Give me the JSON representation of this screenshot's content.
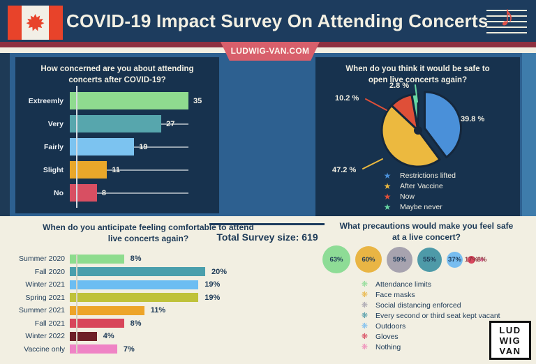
{
  "header": {
    "title": "COVID-19 Impact  Survey On Attending Concerts"
  },
  "banner": {
    "site": "LUDWIG-VAN.COM"
  },
  "summary": {
    "total_label": "Total Survey size: 619"
  },
  "logo": {
    "line1": "LUD",
    "line2": "WIG",
    "line3": "VAN"
  },
  "colors": {
    "header_navy": "#1d3c5e",
    "panel_navy": "#17324e",
    "section_blue": "#2d6090",
    "maroon_stripe": "#8e3040",
    "cream": "#f2efe2",
    "ribbon_red": "#d85f6b",
    "pie_outline": "#15273c",
    "navy_text": "#1d3a57"
  },
  "chart_data": [
    {
      "type": "bar",
      "orientation": "horizontal",
      "title": "How concerned are you about attending concerts after COVID-19?",
      "categories": [
        "Extreemly",
        "Very",
        "Fairly",
        "Slight",
        "No"
      ],
      "values": [
        35,
        27,
        19,
        11,
        8
      ],
      "value_labels": [
        "35",
        "27",
        "19",
        "11",
        "8"
      ],
      "colors": [
        "#8fdb8f",
        "#57a6ad",
        "#7cc3f0",
        "#e9a72a",
        "#d84f62"
      ],
      "xlim": [
        0,
        35
      ],
      "grid": "value leader lines to max",
      "legend_position": "none"
    },
    {
      "type": "pie",
      "title": "When do you think it would be safe to open live concerts again?",
      "slices": [
        {
          "label": "Restrictions lifted",
          "value": 39.8,
          "display": "39.8 %",
          "color": "#4a90d9"
        },
        {
          "label": "After Vaccine",
          "value": 47.2,
          "display": "47.2 %",
          "color": "#ecb93f"
        },
        {
          "label": "Now",
          "value": 10.2,
          "display": "10.2 %",
          "color": "#df4f38"
        },
        {
          "label": "Maybe never",
          "value": 2.8,
          "display": "2.8 %",
          "color": "#68d9a4"
        }
      ],
      "exploded_index": 0,
      "legend_position": "bottom",
      "legend_marker": "star"
    },
    {
      "type": "bar",
      "orientation": "horizontal",
      "title": "When do you anticipate feeling comfortable to attend live concerts again?",
      "categories": [
        "Summer 2020",
        "Fall 2020",
        "Winter 2021",
        "Spring 2021",
        "Summer 2021",
        "Fall 2021",
        "Winter 2022",
        "Vaccine only"
      ],
      "values": [
        8,
        20,
        19,
        19,
        11,
        8,
        4,
        7
      ],
      "value_labels": [
        "8%",
        "20%",
        "19%",
        "19%",
        "11%",
        "8%",
        "4%",
        "7%"
      ],
      "colors": [
        "#8edc8e",
        "#4a9fac",
        "#6cbdf2",
        "#bfc23a",
        "#eda429",
        "#d8465a",
        "#6e2027",
        "#ef83c5"
      ],
      "xlim": [
        0,
        20
      ],
      "legend_position": "none"
    },
    {
      "type": "bubble",
      "title": "What precautions would make you feel safe at a live concert?",
      "items": [
        {
          "label": "Attendance limits",
          "value": 63,
          "display": "63%",
          "color": "#8edc96"
        },
        {
          "label": "Face masks",
          "value": 60,
          "display": "60%",
          "color": "#e9b544"
        },
        {
          "label": "Social distancing enforced",
          "value": 59,
          "display": "59%",
          "color": "#a7a3af"
        },
        {
          "label": "Every second or third seat kept vacant",
          "value": 55,
          "display": "55%",
          "color": "#4e9aa8"
        },
        {
          "label": "Outdoors",
          "value": 37,
          "display": "37%",
          "color": "#78bdf0"
        },
        {
          "label": "Gloves",
          "value": 17,
          "display": "17%",
          "color": "#d8485e"
        },
        {
          "label": "Nothing",
          "value": 8,
          "display": "8%",
          "color": "#f08ab8"
        }
      ],
      "legend_marker": "virus-asterisk"
    }
  ]
}
